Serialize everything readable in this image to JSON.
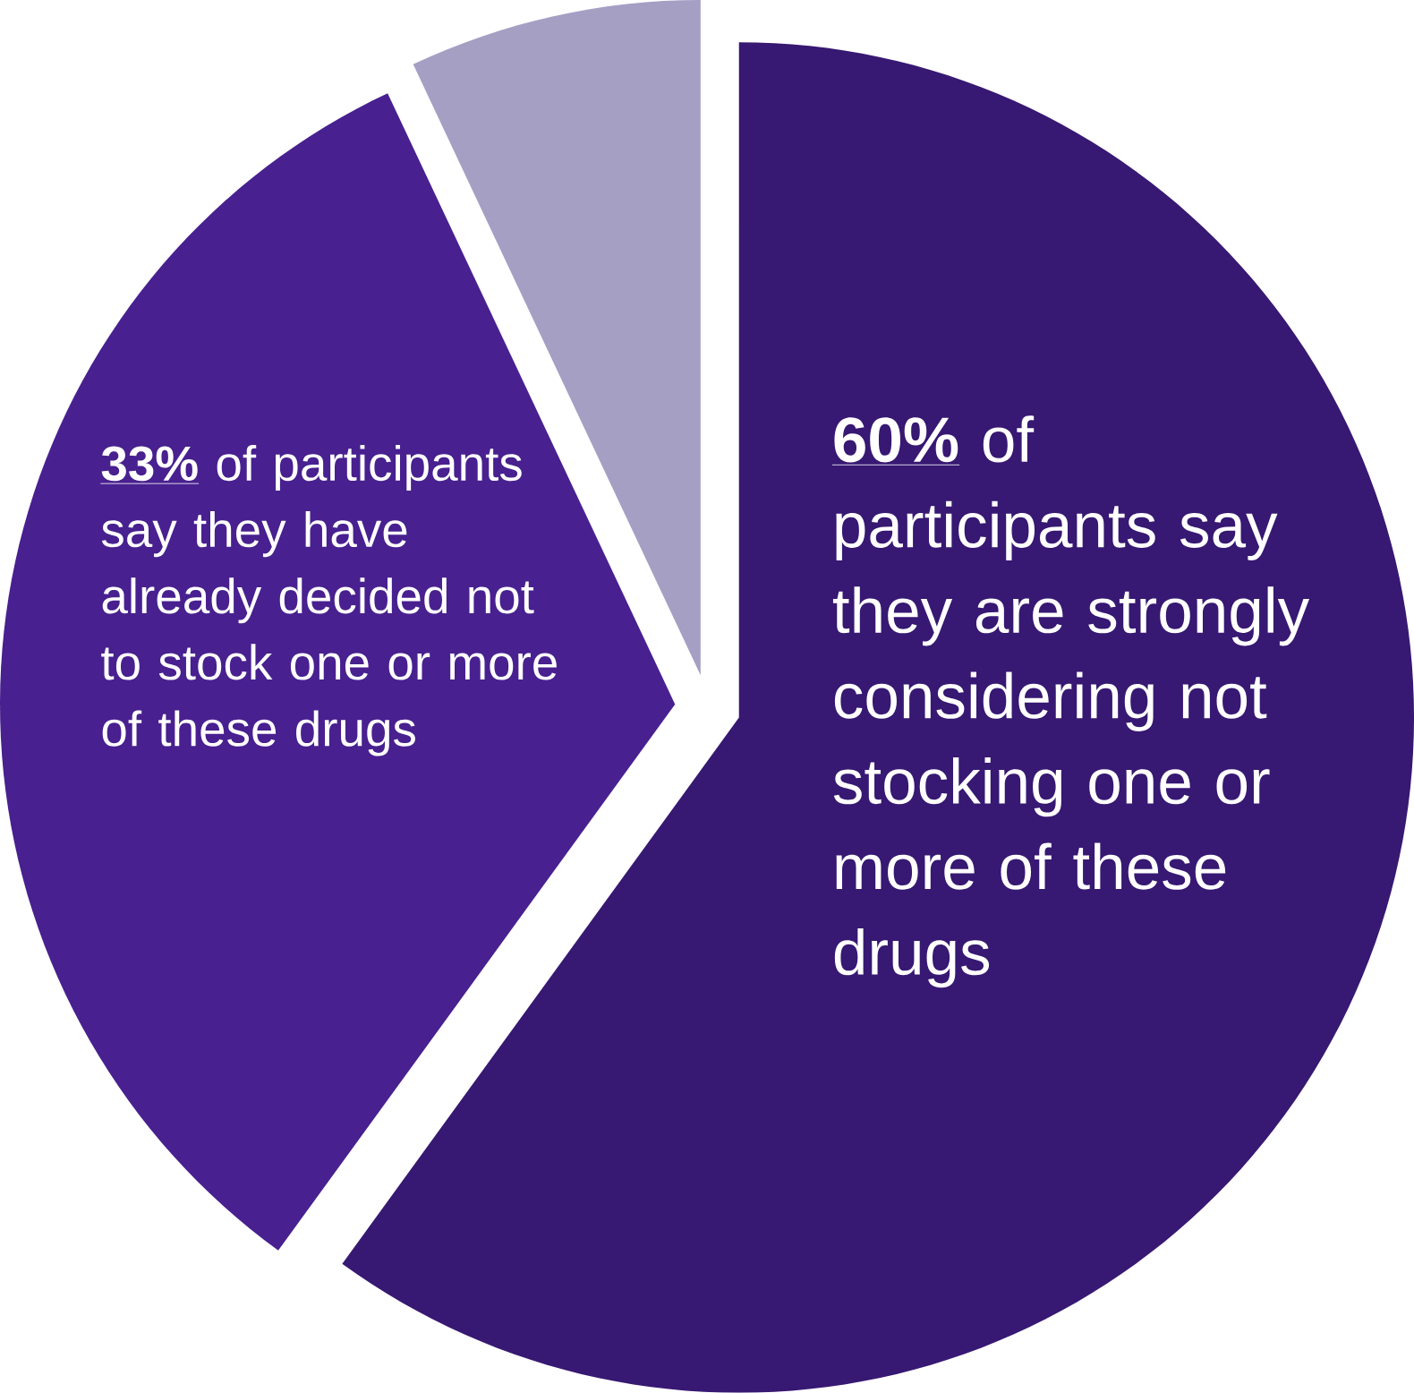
{
  "chart_data": {
    "type": "pie",
    "categories": [
      "of participants say they are strongly considering not stocking one or more of these drugs",
      "of participants say they have already decided not to stock one or more of these drugs",
      null
    ],
    "values": [
      60,
      33,
      7
    ],
    "value_labels": [
      "60%",
      "33%",
      null
    ],
    "colors": [
      "#371872",
      "#48208f",
      "#a59fc4"
    ]
  }
}
